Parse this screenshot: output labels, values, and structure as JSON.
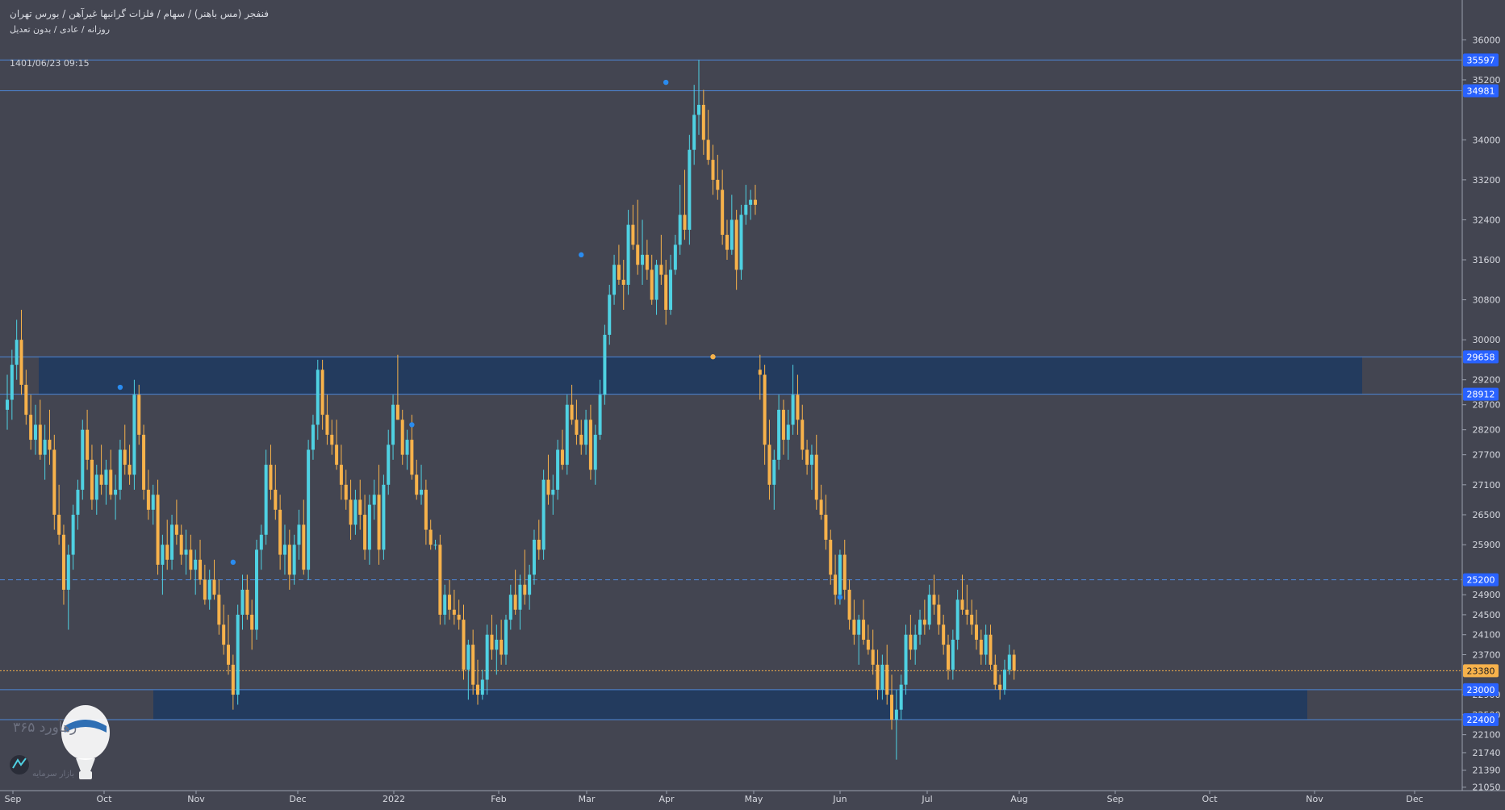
{
  "header": {
    "line1": "فنفجر (مس باهنر) / سهام / فلزات گرانبها غیرآهن / بورس تهران",
    "line2": "روزانه / عادی / بدون تعدیل",
    "timestamp": "1401/06/23 09:15"
  },
  "watermark": {
    "line1": "رهآورد ۳۶۵",
    "line2": "بازار سرمایه"
  },
  "colors": {
    "background": "#434551",
    "up": "#4fd1e2",
    "down": "#f7b24b",
    "level_line": "#4d86d6",
    "zone_fill": "#1d3a60",
    "current_price": "#f7b24b",
    "label_bg": "#2962ff"
  },
  "chart_data": {
    "type": "candlestick",
    "y_axis": {
      "position": "right",
      "ticks": [
        36000,
        35200,
        34000,
        33200,
        32400,
        31600,
        30800,
        30000,
        29200,
        28700,
        28200,
        27700,
        27100,
        26500,
        25900,
        24900,
        24500,
        24100,
        23700,
        22900,
        22500,
        22100,
        21740,
        21390,
        21050
      ],
      "range": [
        20950,
        36600
      ]
    },
    "x_axis": {
      "labels": [
        "Sep",
        "Oct",
        "Nov",
        "Dec",
        "2022",
        "Feb",
        "Mar",
        "Apr",
        "May",
        "Jun",
        "Jul",
        "Aug",
        "Sep",
        "Oct",
        "Nov",
        "Dec"
      ]
    },
    "price_levels": [
      {
        "value": 35597,
        "label": "35597",
        "style": "solid"
      },
      {
        "value": 34981,
        "label": "34981",
        "style": "solid"
      },
      {
        "value": 29658,
        "label": "29658",
        "style": "solid"
      },
      {
        "value": 28912,
        "label": "28912",
        "style": "solid"
      },
      {
        "value": 25200,
        "label": "25200",
        "style": "dashed"
      },
      {
        "value": 23000,
        "label": "23000",
        "style": "solid"
      },
      {
        "value": 22400,
        "label": "22400",
        "style": "solid"
      }
    ],
    "current_price": {
      "value": 23380,
      "label": "23380"
    },
    "zones": [
      {
        "from": 28912,
        "to": 29658,
        "start_month": "Sep",
        "end_month": "Nov"
      },
      {
        "from": 22400,
        "to": 23000,
        "start_month": "Nov",
        "end_month": "Nov"
      }
    ],
    "candles": [
      [
        28600,
        29300,
        28200,
        28800
      ],
      [
        28800,
        29800,
        28400,
        29500
      ],
      [
        29500,
        30400,
        29200,
        30000
      ],
      [
        30000,
        30600,
        28900,
        29100
      ],
      [
        29100,
        29400,
        28300,
        28500
      ],
      [
        28500,
        28900,
        27800,
        28000
      ],
      [
        28000,
        28700,
        27700,
        28300
      ],
      [
        28300,
        28800,
        27600,
        27700
      ],
      [
        27700,
        28300,
        27200,
        28000
      ],
      [
        28000,
        28600,
        27500,
        27800
      ],
      [
        27800,
        28100,
        26200,
        26500
      ],
      [
        26500,
        27100,
        25900,
        26100
      ],
      [
        26100,
        26300,
        24700,
        25000
      ],
      [
        25000,
        25900,
        24200,
        25700
      ],
      [
        25700,
        26700,
        25400,
        26500
      ],
      [
        26500,
        27200,
        26200,
        27000
      ],
      [
        27000,
        28400,
        26800,
        28200
      ],
      [
        28200,
        28600,
        27400,
        27600
      ],
      [
        27600,
        27900,
        26600,
        26800
      ],
      [
        26800,
        27500,
        26500,
        27300
      ],
      [
        27300,
        27900,
        26900,
        27100
      ],
      [
        27100,
        27600,
        26700,
        27400
      ],
      [
        27400,
        27800,
        26800,
        26900
      ],
      [
        26900,
        27300,
        26400,
        27000
      ],
      [
        27000,
        28000,
        26800,
        27800
      ],
      [
        27800,
        28300,
        27300,
        27500
      ],
      [
        27500,
        27900,
        27100,
        27300
      ],
      [
        27300,
        29200,
        27000,
        28900
      ],
      [
        28900,
        29100,
        27900,
        28100
      ],
      [
        28100,
        28300,
        26800,
        27000
      ],
      [
        27000,
        27400,
        26400,
        26600
      ],
      [
        26600,
        27100,
        26300,
        26900
      ],
      [
        26900,
        27200,
        25300,
        25500
      ],
      [
        25500,
        26100,
        24900,
        25900
      ],
      [
        25900,
        26400,
        25400,
        25600
      ],
      [
        25600,
        26500,
        25400,
        26300
      ],
      [
        26300,
        26800,
        25900,
        26100
      ],
      [
        26100,
        26300,
        25500,
        25700
      ],
      [
        25700,
        26200,
        25300,
        25800
      ],
      [
        25800,
        26100,
        25200,
        25400
      ],
      [
        25400,
        25800,
        24900,
        25600
      ],
      [
        25600,
        26000,
        25100,
        25200
      ],
      [
        25200,
        25500,
        24700,
        24800
      ],
      [
        24800,
        25400,
        24600,
        25200
      ],
      [
        25200,
        25600,
        24800,
        24900
      ],
      [
        24900,
        25200,
        24100,
        24300
      ],
      [
        24300,
        24700,
        23700,
        23900
      ],
      [
        23900,
        24500,
        23300,
        23500
      ],
      [
        23500,
        23700,
        22600,
        22900
      ],
      [
        22900,
        24700,
        22700,
        24500
      ],
      [
        24500,
        25300,
        24200,
        25000
      ],
      [
        25000,
        25300,
        24400,
        24500
      ],
      [
        24500,
        24800,
        23800,
        24200
      ],
      [
        24200,
        26000,
        24000,
        25800
      ],
      [
        25800,
        26300,
        25400,
        26100
      ],
      [
        26100,
        27800,
        25900,
        27500
      ],
      [
        27500,
        27900,
        26800,
        27000
      ],
      [
        27000,
        27500,
        26400,
        26600
      ],
      [
        26600,
        26900,
        25400,
        25700
      ],
      [
        25700,
        26300,
        25300,
        25900
      ],
      [
        25900,
        26200,
        25000,
        25300
      ],
      [
        25300,
        26100,
        25100,
        25900
      ],
      [
        25900,
        26600,
        25600,
        26300
      ],
      [
        26300,
        26800,
        25300,
        25400
      ],
      [
        25400,
        28000,
        25200,
        27800
      ],
      [
        27800,
        28500,
        27600,
        28300
      ],
      [
        28300,
        29600,
        28000,
        29400
      ],
      [
        29400,
        29600,
        28200,
        28500
      ],
      [
        28500,
        28900,
        27900,
        28100
      ],
      [
        28100,
        28400,
        27700,
        27900
      ],
      [
        27900,
        28400,
        27400,
        27500
      ],
      [
        27500,
        27900,
        26800,
        27100
      ],
      [
        27100,
        27400,
        26600,
        26800
      ],
      [
        26800,
        27200,
        26000,
        26300
      ],
      [
        26300,
        27000,
        26100,
        26800
      ],
      [
        26800,
        27200,
        26200,
        26500
      ],
      [
        26500,
        26900,
        25600,
        25800
      ],
      [
        25800,
        26900,
        25500,
        26700
      ],
      [
        26700,
        27200,
        26400,
        26900
      ],
      [
        26900,
        27500,
        25500,
        25800
      ],
      [
        25800,
        27300,
        25600,
        27100
      ],
      [
        27100,
        28200,
        26900,
        27900
      ],
      [
        27900,
        28900,
        27600,
        28700
      ],
      [
        28700,
        29700,
        28400,
        28400
      ],
      [
        28400,
        28600,
        27500,
        27700
      ],
      [
        27700,
        28200,
        27400,
        28000
      ],
      [
        28000,
        28500,
        27200,
        27300
      ],
      [
        27300,
        27600,
        26800,
        26900
      ],
      [
        26900,
        27500,
        26700,
        27000
      ],
      [
        27000,
        27200,
        25900,
        26200
      ],
      [
        26200,
        26400,
        25800,
        25900
      ],
      [
        25900,
        26000,
        25800,
        25900
      ],
      [
        25900,
        26100,
        24300,
        24500
      ],
      [
        24500,
        25100,
        24300,
        24900
      ],
      [
        24900,
        25200,
        24400,
        24600
      ],
      [
        24600,
        25000,
        24300,
        24500
      ],
      [
        24500,
        24800,
        24200,
        24400
      ],
      [
        24400,
        24700,
        23200,
        23400
      ],
      [
        23400,
        24000,
        22800,
        23900
      ],
      [
        23900,
        24200,
        22900,
        23100
      ],
      [
        23100,
        23600,
        22700,
        22900
      ],
      [
        22900,
        23400,
        22800,
        23200
      ],
      [
        23200,
        24300,
        22900,
        24100
      ],
      [
        24100,
        24500,
        23600,
        23800
      ],
      [
        23800,
        24300,
        23300,
        24000
      ],
      [
        24000,
        24400,
        23500,
        23700
      ],
      [
        23700,
        24500,
        23500,
        24400
      ],
      [
        24400,
        25100,
        24200,
        24900
      ],
      [
        24900,
        25400,
        24500,
        24600
      ],
      [
        24600,
        25300,
        24200,
        25100
      ],
      [
        25100,
        25800,
        24700,
        24900
      ],
      [
        24900,
        25500,
        24600,
        25300
      ],
      [
        25300,
        26200,
        25100,
        26000
      ],
      [
        26000,
        26400,
        25600,
        25800
      ],
      [
        25800,
        27400,
        25600,
        27200
      ],
      [
        27200,
        27700,
        26700,
        26900
      ],
      [
        26900,
        27300,
        26500,
        27000
      ],
      [
        27000,
        28000,
        26800,
        27800
      ],
      [
        27800,
        28200,
        27400,
        27500
      ],
      [
        27500,
        28900,
        27300,
        28700
      ],
      [
        28700,
        29100,
        28300,
        28400
      ],
      [
        28400,
        28800,
        27900,
        28100
      ],
      [
        28100,
        28400,
        27700,
        27900
      ],
      [
        27900,
        28600,
        27700,
        28400
      ],
      [
        28400,
        28700,
        27200,
        27400
      ],
      [
        27400,
        28300,
        27100,
        28100
      ],
      [
        28100,
        29200,
        28000,
        28900
      ],
      [
        28900,
        30300,
        28700,
        30100
      ],
      [
        30100,
        31100,
        29900,
        30900
      ],
      [
        30900,
        31700,
        30700,
        31500
      ],
      [
        31500,
        31900,
        31100,
        31200
      ],
      [
        31200,
        31600,
        30600,
        31100
      ],
      [
        31100,
        32600,
        30900,
        32300
      ],
      [
        32300,
        32700,
        31800,
        31900
      ],
      [
        31900,
        32800,
        31300,
        31500
      ],
      [
        31500,
        32400,
        31100,
        31700
      ],
      [
        31700,
        32000,
        31200,
        31400
      ],
      [
        31400,
        31700,
        30700,
        30800
      ],
      [
        30800,
        31600,
        30500,
        31500
      ],
      [
        31500,
        32100,
        31100,
        31300
      ],
      [
        31300,
        31600,
        30300,
        30600
      ],
      [
        30600,
        31700,
        30500,
        31400
      ],
      [
        31400,
        32100,
        31300,
        31900
      ],
      [
        31900,
        33100,
        31700,
        32500
      ],
      [
        32500,
        33400,
        32000,
        32200
      ],
      [
        32200,
        34100,
        31900,
        33800
      ],
      [
        33800,
        35100,
        33500,
        34500
      ],
      [
        34500,
        35600,
        34100,
        34700
      ],
      [
        34700,
        35000,
        33700,
        34000
      ],
      [
        34000,
        34600,
        33500,
        33600
      ],
      [
        33600,
        33900,
        32900,
        33200
      ],
      [
        33200,
        33700,
        32800,
        33000
      ],
      [
        33000,
        33400,
        31900,
        32100
      ],
      [
        32100,
        32400,
        31600,
        31800
      ],
      [
        31800,
        32900,
        31700,
        32400
      ],
      [
        32400,
        32600,
        31000,
        31400
      ],
      [
        31400,
        32700,
        31200,
        32500
      ],
      [
        32500,
        33100,
        32300,
        32700
      ],
      [
        32700,
        33000,
        32400,
        32800
      ],
      [
        32800,
        33100,
        32500,
        32700
      ],
      [
        29400,
        29700,
        28800,
        29300
      ],
      [
        29300,
        29500,
        27500,
        27900
      ],
      [
        27900,
        28400,
        26800,
        27100
      ],
      [
        27100,
        27800,
        26600,
        27600
      ],
      [
        27600,
        28900,
        27400,
        28600
      ],
      [
        28600,
        28800,
        27700,
        28000
      ],
      [
        28000,
        28600,
        27600,
        28300
      ],
      [
        28300,
        29500,
        28100,
        28900
      ],
      [
        28900,
        29300,
        28100,
        28400
      ],
      [
        28400,
        28700,
        27600,
        27800
      ],
      [
        27800,
        28000,
        27300,
        27500
      ],
      [
        27500,
        27900,
        27000,
        27700
      ],
      [
        27700,
        28100,
        26600,
        26800
      ],
      [
        26800,
        27100,
        26400,
        26500
      ],
      [
        26500,
        26900,
        25800,
        26000
      ],
      [
        26000,
        26200,
        25100,
        25300
      ],
      [
        25300,
        25700,
        24700,
        24900
      ],
      [
        24900,
        25800,
        24700,
        25700
      ],
      [
        25700,
        26000,
        24800,
        25000
      ],
      [
        25000,
        25200,
        24200,
        24400
      ],
      [
        24400,
        24800,
        23900,
        24100
      ],
      [
        24100,
        24500,
        23500,
        24400
      ],
      [
        24400,
        24800,
        23900,
        24000
      ],
      [
        24000,
        24300,
        23700,
        23800
      ],
      [
        23800,
        24200,
        23300,
        23500
      ],
      [
        23500,
        23800,
        22800,
        23000
      ],
      [
        23000,
        23700,
        22800,
        23500
      ],
      [
        23500,
        23900,
        22700,
        22900
      ],
      [
        22900,
        23300,
        22200,
        22400
      ],
      [
        22400,
        23000,
        21600,
        22600
      ],
      [
        22600,
        23300,
        22400,
        23100
      ],
      [
        23100,
        24300,
        22900,
        24100
      ],
      [
        24100,
        24500,
        23600,
        23800
      ],
      [
        23800,
        24300,
        23500,
        24100
      ],
      [
        24100,
        24600,
        23900,
        24400
      ],
      [
        24400,
        24800,
        24100,
        24300
      ],
      [
        24300,
        25100,
        24200,
        24900
      ],
      [
        24900,
        25300,
        24500,
        24700
      ],
      [
        24700,
        24900,
        24100,
        24300
      ],
      [
        24300,
        24500,
        23700,
        23900
      ],
      [
        23900,
        24100,
        23200,
        23400
      ],
      [
        23400,
        24200,
        23200,
        24000
      ],
      [
        24000,
        25000,
        23800,
        24800
      ],
      [
        24800,
        25300,
        24500,
        24600
      ],
      [
        24600,
        25100,
        24300,
        24500
      ],
      [
        24500,
        24800,
        24100,
        24300
      ],
      [
        24300,
        24600,
        23800,
        24000
      ],
      [
        24000,
        24200,
        23500,
        23700
      ],
      [
        23700,
        24300,
        23500,
        24100
      ],
      [
        24100,
        24300,
        23400,
        23500
      ],
      [
        23500,
        23700,
        23000,
        23100
      ],
      [
        23100,
        23300,
        22800,
        23000
      ],
      [
        23000,
        23600,
        22900,
        23400
      ],
      [
        23400,
        23900,
        23300,
        23700
      ],
      [
        23700,
        23800,
        23200,
        23380
      ]
    ],
    "markers": [
      {
        "candle": 24,
        "price": 29050,
        "color": "#2a8cf0"
      },
      {
        "candle": 48,
        "price": 25550,
        "color": "#2a8cf0"
      },
      {
        "candle": 86,
        "price": 28300,
        "color": "#2a8cf0"
      },
      {
        "candle": 140,
        "price": 35150,
        "color": "#2a8cf0"
      },
      {
        "candle": 122,
        "price": 31700,
        "color": "#2a8cf0"
      },
      {
        "candle": 150,
        "price": 29660,
        "color": "#f7b24b"
      },
      {
        "candle": 177,
        "price": 24850,
        "color": "#2a8cf0"
      }
    ]
  }
}
